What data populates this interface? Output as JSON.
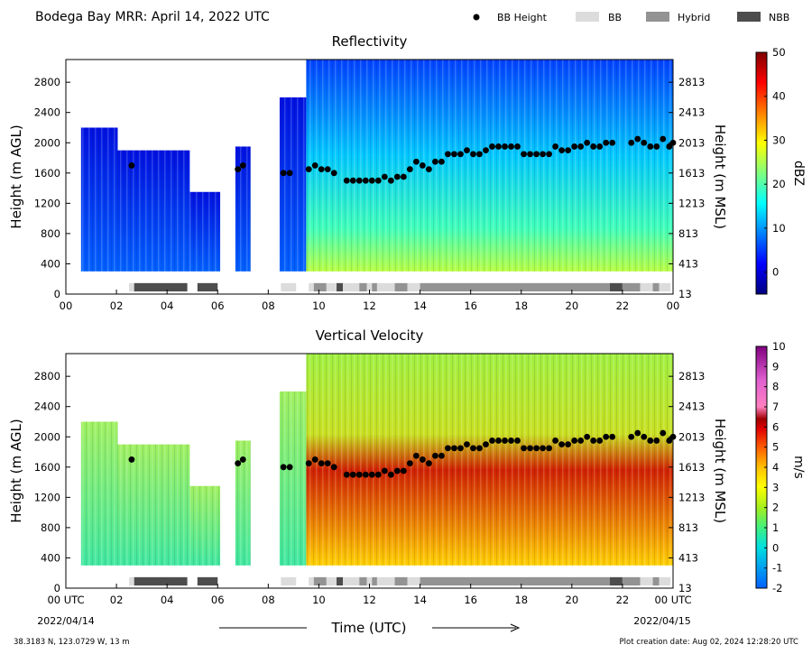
{
  "header": {
    "title": "Bodega Bay MRR:  April 14, 2022 UTC",
    "legend": [
      {
        "label": "BB Height",
        "kind": "dot",
        "color": "#000000"
      },
      {
        "label": "BB",
        "kind": "patch",
        "color": "#dcdcdc"
      },
      {
        "label": "Hybrid",
        "kind": "patch",
        "color": "#939393"
      },
      {
        "label": "NBB",
        "kind": "patch",
        "color": "#4d4d4d"
      }
    ]
  },
  "footer": {
    "location": "38.3183 N, 123.0729 W, 13 m",
    "creation": "Plot creation date: Aug 02, 2024 12:28:20 UTC",
    "xlabel": "Time (UTC)",
    "start_date": "2022/04/14",
    "end_date": "2022/04/15"
  },
  "colors": {
    "bb": "#dcdcdc",
    "hybrid": "#939393",
    "nbb": "#4d4d4d",
    "bb_point": "#000000"
  },
  "chart_data": [
    {
      "type": "heatmap",
      "title": "Reflectivity",
      "ylabel": "Height (m AGL)",
      "ylabel_right": "Height (m MSL)",
      "colorbar_label": "dBZ",
      "colormap": "jet",
      "clim": [
        -5,
        50
      ],
      "colorbar_ticks": [
        "50",
        "40",
        "30",
        "20",
        "10",
        "0"
      ],
      "colorbar_tick_values": [
        50,
        40,
        30,
        20,
        10,
        0
      ],
      "x_ticks": [
        "00",
        "02",
        "04",
        "06",
        "08",
        "10",
        "12",
        "14",
        "16",
        "18",
        "20",
        "22",
        "00"
      ],
      "xlim": [
        0,
        24
      ],
      "ylim": [
        0,
        3100
      ],
      "y_ticks": [
        "0",
        "400",
        "800",
        "1200",
        "1600",
        "2000",
        "2400",
        "2800"
      ],
      "y_ticks_right": [
        "13",
        "413",
        "813",
        "1213",
        "1613",
        "2013",
        "2413",
        "2813"
      ],
      "grid": false
    },
    {
      "type": "heatmap",
      "title": "Vertical Velocity",
      "ylabel": "Height (m AGL)",
      "ylabel_right": "Height (m MSL)",
      "colorbar_label": "m/s",
      "colormap": "velocity",
      "clim": [
        -2,
        10
      ],
      "colorbar_ticks": [
        "10",
        "9",
        "8",
        "7",
        "6",
        "5",
        "4",
        "3",
        "2",
        "1",
        "0",
        "-1",
        "-2"
      ],
      "colorbar_tick_values": [
        10,
        9,
        8,
        7,
        6,
        5,
        4,
        3,
        2,
        1,
        0,
        -1,
        -2
      ],
      "x_ticks": [
        "00 UTC",
        "02",
        "04",
        "06",
        "08",
        "10",
        "12",
        "14",
        "16",
        "18",
        "20",
        "22",
        "00 UTC"
      ],
      "xlim": [
        0,
        24
      ],
      "ylim": [
        0,
        3100
      ],
      "y_ticks": [
        "0",
        "400",
        "800",
        "1200",
        "1600",
        "2000",
        "2400",
        "2800"
      ],
      "y_ticks_right": [
        "13",
        "413",
        "813",
        "1213",
        "1613",
        "2013",
        "2413",
        "2813"
      ],
      "grid": false
    }
  ],
  "bright_band_heights": {
    "time_h": [
      2.6,
      6.8,
      7.0,
      8.6,
      8.85,
      9.6,
      9.85,
      10.1,
      10.35,
      10.6,
      11.1,
      11.35,
      11.6,
      11.85,
      12.1,
      12.35,
      12.6,
      12.85,
      13.1,
      13.35,
      13.6,
      13.85,
      14.1,
      14.35,
      14.6,
      14.85,
      15.1,
      15.35,
      15.6,
      15.85,
      16.1,
      16.35,
      16.6,
      16.85,
      17.1,
      17.35,
      17.6,
      17.85,
      18.1,
      18.35,
      18.6,
      18.85,
      19.1,
      19.35,
      19.6,
      19.85,
      20.1,
      20.35,
      20.6,
      20.85,
      21.1,
      21.35,
      21.6,
      22.35,
      22.6,
      22.85,
      23.1,
      23.35,
      23.6,
      23.85,
      24.0
    ],
    "height_m": [
      1700,
      1650,
      1700,
      1600,
      1600,
      1650,
      1700,
      1650,
      1650,
      1600,
      1500,
      1500,
      1500,
      1500,
      1500,
      1500,
      1550,
      1500,
      1550,
      1550,
      1650,
      1750,
      1700,
      1650,
      1750,
      1750,
      1850,
      1850,
      1850,
      1900,
      1850,
      1850,
      1900,
      1950,
      1950,
      1950,
      1950,
      1950,
      1850,
      1850,
      1850,
      1850,
      1850,
      1950,
      1900,
      1900,
      1950,
      1950,
      2000,
      1950,
      1950,
      2000,
      2000,
      2000,
      2050,
      2000,
      1950,
      1950,
      2050,
      1950,
      2000
    ]
  },
  "bb_type_bar": [
    {
      "start": 2.5,
      "end": 2.7,
      "type": "BB"
    },
    {
      "start": 2.7,
      "end": 4.8,
      "type": "NBB"
    },
    {
      "start": 5.2,
      "end": 6.0,
      "type": "NBB"
    },
    {
      "start": 8.5,
      "end": 9.1,
      "type": "BB"
    },
    {
      "start": 9.6,
      "end": 9.8,
      "type": "BB"
    },
    {
      "start": 9.8,
      "end": 10.3,
      "type": "Hybrid"
    },
    {
      "start": 10.3,
      "end": 10.7,
      "type": "BB"
    },
    {
      "start": 10.7,
      "end": 10.95,
      "type": "NBB"
    },
    {
      "start": 10.95,
      "end": 11.6,
      "type": "BB"
    },
    {
      "start": 11.6,
      "end": 11.9,
      "type": "Hybrid"
    },
    {
      "start": 11.9,
      "end": 12.1,
      "type": "BB"
    },
    {
      "start": 12.1,
      "end": 12.3,
      "type": "Hybrid"
    },
    {
      "start": 12.3,
      "end": 13.0,
      "type": "BB"
    },
    {
      "start": 13.0,
      "end": 13.5,
      "type": "Hybrid"
    },
    {
      "start": 13.5,
      "end": 14.0,
      "type": "BB"
    },
    {
      "start": 14.0,
      "end": 21.5,
      "type": "Hybrid"
    },
    {
      "start": 21.5,
      "end": 22.0,
      "type": "NBB"
    },
    {
      "start": 22.0,
      "end": 22.7,
      "type": "Hybrid"
    },
    {
      "start": 22.7,
      "end": 23.2,
      "type": "BB"
    },
    {
      "start": 23.2,
      "end": 23.45,
      "type": "Hybrid"
    },
    {
      "start": 23.45,
      "end": 23.9,
      "type": "BB"
    }
  ],
  "data_segments": [
    {
      "start": 0.6,
      "end": 2.05,
      "top": 2200
    },
    {
      "start": 2.05,
      "end": 4.9,
      "top": 1900
    },
    {
      "start": 4.9,
      "end": 6.1,
      "top": 1350
    },
    {
      "start": 6.7,
      "end": 7.3,
      "top": 1950
    },
    {
      "start": 8.45,
      "end": 9.5,
      "top": 2600
    },
    {
      "start": 9.5,
      "end": 24.0,
      "top": 3100
    }
  ]
}
